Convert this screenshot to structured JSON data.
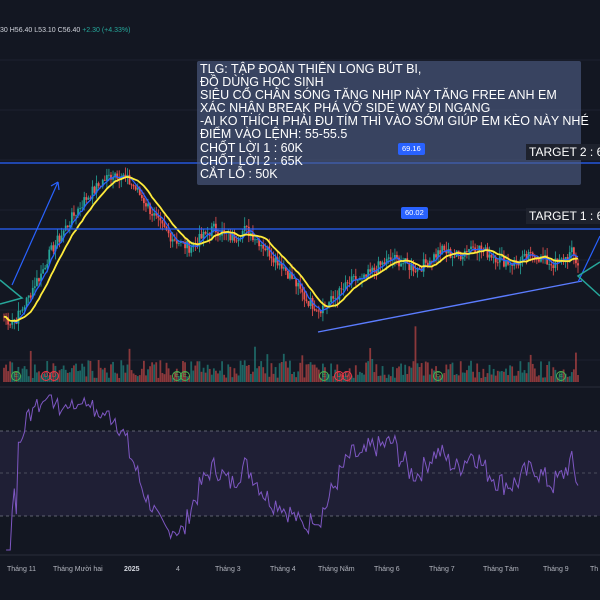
{
  "ohlc_bar": {
    "open": "",
    "high": "H56.40",
    "low": "L53.10",
    "close": "C56.40",
    "change": "+2.30 (+4.33%)",
    "open_fragment": "30"
  },
  "note": {
    "lines": [
      "TLG: TẬP ĐOÀN THIÊN LONG BÚT BI,",
      " ĐỒ DÙNG HỌC SINH",
      " SIÊU CỔ CHÂN SÓNG TĂNG NHỊP NÀY TĂNG FREE ANH EM",
      "XÁC NHẬN BREAK PHÁ VỠ SIDE WAY ĐI NGANG",
      "-AI KO THÍCH PHẢI ĐU TÍM THÌ VÀO SỚM GIÚP EM KÈO NÀY NHÉ",
      "ĐIỂM VÀO LỆNH: 55-55.5",
      "CHỐT LỜI 1 : 60K",
      "CHỐT LỜI 2 : 65K",
      "CẮT LỖ : 50K"
    ]
  },
  "levels": {
    "upper": "69.16",
    "lower": "60.02"
  },
  "targets": {
    "t2": "TARGET 2 : 6",
    "t1": "TARGET 1 : 6"
  },
  "events": {
    "earnings": "E",
    "dividend": "D"
  },
  "x_axis": [
    "Tháng 11",
    "Tháng Mười hai",
    "2025",
    "4",
    "Tháng 3",
    "Tháng 4",
    "Tháng Năm",
    "Tháng 6",
    "Tháng 7",
    "Tháng Tám",
    "Tháng 9",
    "Th"
  ],
  "colors": {
    "background": "#131722",
    "up": "#26a69a",
    "down": "#ef5350",
    "ma_yellow": "#ffeb3b",
    "ma_blue": "#2962ff",
    "rsi": "#7e57c2",
    "level_line": "#2962ff"
  },
  "chart_data": {
    "type": "candlestick",
    "symbol": "TLG",
    "price_series_close": [
      49.5,
      48.8,
      49.2,
      50.6,
      52.1,
      54.0,
      55.2,
      57.3,
      58.9,
      60.1,
      61.5,
      62.8,
      64.0,
      65.2,
      66.1,
      66.9,
      67.8,
      68.4,
      68.9,
      68.6,
      67.9,
      67.1,
      66.0,
      64.8,
      63.5,
      62.1,
      61.2,
      60.4,
      59.8,
      59.2,
      58.9,
      59.4,
      60.1,
      60.8,
      61.4,
      61.0,
      60.5,
      60.1,
      60.6,
      61.2,
      60.8,
      60.0,
      59.1,
      58.2,
      57.3,
      56.6,
      55.4,
      54.3,
      52.9,
      51.8,
      51.2,
      50.6,
      50.9,
      51.6,
      52.4,
      53.2,
      54.0,
      54.5,
      54.2,
      55.1,
      55.8,
      56.4,
      56.9,
      57.3,
      57.0,
      56.6,
      56.2,
      56.0,
      56.5,
      57.2,
      57.9,
      58.4,
      58.1,
      57.7,
      57.9,
      58.6,
      59.1,
      58.7,
      58.2,
      57.9,
      57.4,
      57.0,
      56.8,
      56.7,
      57.1,
      57.5,
      57.9,
      57.3,
      56.9,
      56.6,
      56.8,
      57.4,
      58.1,
      56.4
    ],
    "rsi_levels": [
      70,
      50,
      30
    ],
    "annotations": [
      "69.16",
      "60.02"
    ]
  }
}
